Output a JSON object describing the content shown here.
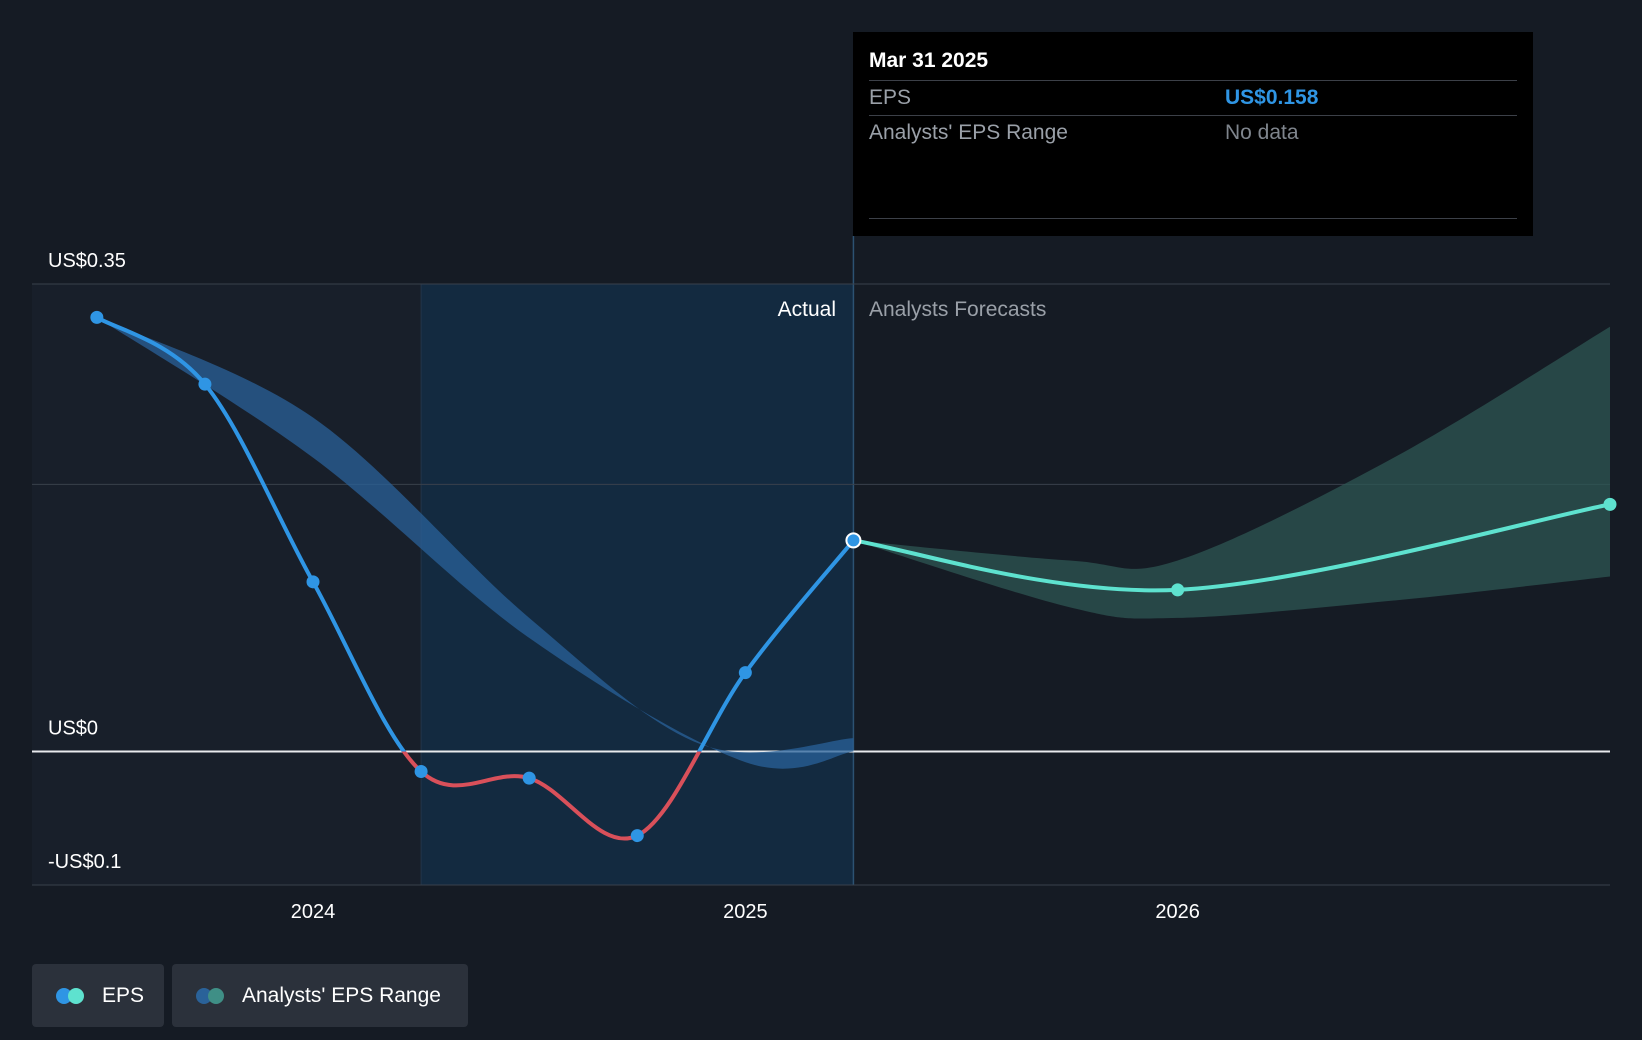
{
  "tooltip": {
    "date": "Mar 31 2025",
    "eps_label": "EPS",
    "eps_value": "US$0.158",
    "range_label": "Analysts' EPS Range",
    "range_value": "No data"
  },
  "labels": {
    "actual": "Actual",
    "forecast": "Analysts Forecasts"
  },
  "legend": {
    "eps": "EPS",
    "range": "Analysts' EPS Range"
  },
  "colors": {
    "background": "#151b24",
    "eps_positive": "#2f95e4",
    "eps_negative": "#d9505a",
    "forecast": "#5ee2cf",
    "forecast_band": "#2d5753",
    "actual_band": "#2a6299",
    "highlight": "#132a40"
  },
  "chart_data": {
    "type": "line",
    "y_ticks": [
      {
        "value": 0.35,
        "label": "US$0.35"
      },
      {
        "value": 0,
        "label": "US$0"
      },
      {
        "value": -0.1,
        "label": "-US$0.1"
      }
    ],
    "x_ticks": [
      {
        "value": 2024.0,
        "label": "2024"
      },
      {
        "value": 2025.0,
        "label": "2025"
      },
      {
        "value": 2026.0,
        "label": "2026"
      }
    ],
    "xlim": [
      2023.35,
      2027.0
    ],
    "ylim": [
      -0.1,
      0.35
    ],
    "gridlines": [
      0.35,
      0.2,
      0,
      -0.1
    ],
    "highlight_range": [
      2024.25,
      2025.25
    ],
    "present": 2025.25,
    "series": [
      {
        "name": "EPS",
        "kind": "actual",
        "points": [
          {
            "x": 2023.5,
            "y": 0.325
          },
          {
            "x": 2023.75,
            "y": 0.275
          },
          {
            "x": 2024.0,
            "y": 0.127
          },
          {
            "x": 2024.25,
            "y": -0.015
          },
          {
            "x": 2024.5,
            "y": -0.02
          },
          {
            "x": 2024.75,
            "y": -0.063
          },
          {
            "x": 2025.0,
            "y": 0.059
          },
          {
            "x": 2025.25,
            "y": 0.158
          }
        ]
      },
      {
        "name": "EPS",
        "kind": "forecast",
        "points": [
          {
            "x": 2025.25,
            "y": 0.158
          },
          {
            "x": 2026.0,
            "y": 0.121
          },
          {
            "x": 2027.0,
            "y": 0.185
          }
        ]
      }
    ],
    "analyst_range_actual": {
      "upper": [
        {
          "x": 2023.5,
          "y": 0.325
        },
        {
          "x": 2024.0,
          "y": 0.25
        },
        {
          "x": 2024.5,
          "y": 0.1
        },
        {
          "x": 2024.9,
          "y": 0.005
        },
        {
          "x": 2025.25,
          "y": 0.01
        }
      ],
      "lower": [
        {
          "x": 2023.5,
          "y": 0.325
        },
        {
          "x": 2024.0,
          "y": 0.22
        },
        {
          "x": 2024.5,
          "y": 0.085
        },
        {
          "x": 2025.0,
          "y": -0.008
        },
        {
          "x": 2025.25,
          "y": 0.0
        }
      ]
    },
    "analyst_range_forecast": {
      "upper": [
        {
          "x": 2025.25,
          "y": 0.158
        },
        {
          "x": 2025.75,
          "y": 0.143
        },
        {
          "x": 2026.0,
          "y": 0.143
        },
        {
          "x": 2026.5,
          "y": 0.22
        },
        {
          "x": 2027.0,
          "y": 0.318
        }
      ],
      "lower": [
        {
          "x": 2025.25,
          "y": 0.158
        },
        {
          "x": 2025.75,
          "y": 0.108
        },
        {
          "x": 2026.0,
          "y": 0.1
        },
        {
          "x": 2026.5,
          "y": 0.113
        },
        {
          "x": 2027.0,
          "y": 0.131
        }
      ]
    }
  }
}
